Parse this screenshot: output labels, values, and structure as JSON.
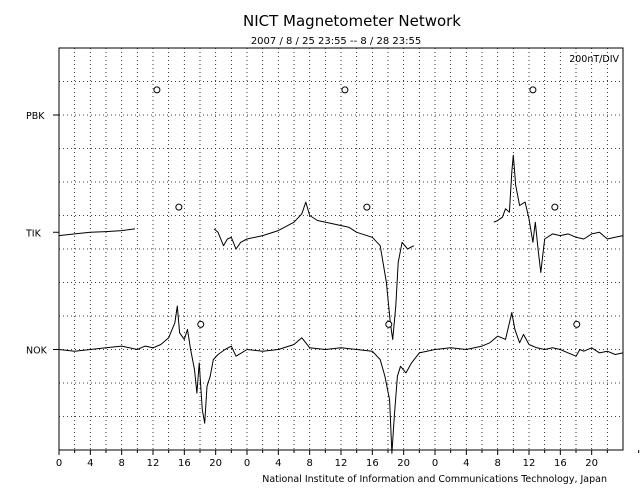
{
  "chart_data": {
    "type": "line",
    "title": "NICT Magnetometer Network",
    "subtitle": "2007 / 8 / 25   23:55 --  8 / 28   23:55",
    "scale_label": "200nT/DIV",
    "credit": "National Institute of Information and Communications Technology, Japan",
    "x_tick_labels": [
      "0",
      "4",
      "8",
      "12",
      "16",
      "20",
      "0",
      "4",
      "8",
      "12",
      "16",
      "20",
      "0",
      "4",
      "8",
      "12",
      "16",
      "20"
    ],
    "x_range_hours": [
      0,
      72
    ],
    "y_range_div": [
      0,
      12
    ],
    "grid": true,
    "stations": [
      {
        "name": "PBK",
        "baseline_div": 10,
        "midnight_markers_h": [
          12.5,
          36.5,
          60.5
        ],
        "data": []
      },
      {
        "name": "TIK",
        "baseline_div": 6.5,
        "midnight_markers_h": [
          15.3,
          39.3,
          63.3
        ],
        "data": [
          [
            [
              0,
              -0.1
            ],
            [
              2,
              -0.05
            ],
            [
              4,
              0.0
            ],
            [
              6,
              0.02
            ],
            [
              8,
              0.05
            ],
            [
              9.7,
              0.1
            ]
          ],
          [
            [
              19.8,
              0.1
            ],
            [
              20.3,
              0.0
            ],
            [
              21,
              -0.4
            ],
            [
              21.5,
              -0.2
            ],
            [
              22,
              -0.15
            ],
            [
              22.6,
              -0.5
            ],
            [
              23.2,
              -0.3
            ],
            [
              24,
              -0.2
            ],
            [
              26,
              -0.1
            ],
            [
              28,
              0.05
            ],
            [
              30,
              0.3
            ],
            [
              31,
              0.55
            ],
            [
              31.5,
              0.9
            ],
            [
              32,
              0.5
            ],
            [
              33,
              0.35
            ],
            [
              35,
              0.25
            ],
            [
              37,
              0.15
            ],
            [
              38,
              0.0
            ],
            [
              40,
              -0.15
            ],
            [
              41,
              -0.4
            ],
            [
              41.8,
              -1.5
            ],
            [
              42.3,
              -2.7
            ],
            [
              42.6,
              -3.2
            ],
            [
              43,
              -2.2
            ],
            [
              43.3,
              -0.9
            ],
            [
              43.8,
              -0.3
            ],
            [
              44.5,
              -0.5
            ],
            [
              45.3,
              -0.4
            ]
          ],
          [
            [
              55.5,
              0.3
            ],
            [
              56,
              0.35
            ],
            [
              56.6,
              0.45
            ],
            [
              57,
              0.7
            ],
            [
              57.5,
              0.6
            ],
            [
              57.8,
              1.8
            ],
            [
              58,
              2.3
            ],
            [
              58.3,
              1.4
            ],
            [
              58.8,
              0.8
            ],
            [
              59.5,
              0.9
            ],
            [
              60,
              0.4
            ],
            [
              60.5,
              -0.3
            ],
            [
              60.8,
              0.3
            ],
            [
              61.2,
              -0.6
            ],
            [
              61.5,
              -1.2
            ],
            [
              61.8,
              -0.6
            ],
            [
              62,
              -0.2
            ],
            [
              63,
              -0.05
            ],
            [
              64,
              -0.1
            ],
            [
              65,
              -0.05
            ],
            [
              66,
              -0.15
            ],
            [
              67,
              -0.2
            ],
            [
              68,
              -0.05
            ],
            [
              69,
              0.0
            ],
            [
              70,
              -0.2
            ],
            [
              71,
              -0.15
            ],
            [
              72,
              -0.1
            ]
          ]
        ]
      },
      {
        "name": "NOK",
        "baseline_div": 3.0,
        "midnight_markers_h": [
          18.1,
          42.1,
          66.1
        ],
        "data": [
          [
            [
              0,
              0.0
            ],
            [
              2,
              -0.05
            ],
            [
              4,
              0.0
            ],
            [
              6,
              0.05
            ],
            [
              8,
              0.1
            ],
            [
              10,
              0.0
            ],
            [
              11,
              0.1
            ],
            [
              12,
              0.05
            ],
            [
              13,
              0.15
            ],
            [
              14,
              0.35
            ],
            [
              14.8,
              0.8
            ],
            [
              15.1,
              1.3
            ],
            [
              15.4,
              0.5
            ],
            [
              16,
              0.3
            ],
            [
              16.4,
              0.6
            ],
            [
              16.8,
              0.0
            ],
            [
              17.3,
              -0.6
            ],
            [
              17.6,
              -1.3
            ],
            [
              17.9,
              -0.4
            ],
            [
              18.3,
              -1.8
            ],
            [
              18.6,
              -2.2
            ],
            [
              18.9,
              -1.1
            ],
            [
              19.3,
              -0.8
            ],
            [
              19.7,
              -0.3
            ],
            [
              20.3,
              -0.15
            ],
            [
              21.2,
              0.0
            ],
            [
              22,
              0.1
            ],
            [
              22.6,
              -0.2
            ],
            [
              23.3,
              -0.1
            ],
            [
              24,
              0.0
            ]
          ],
          [
            [
              24,
              0.0
            ],
            [
              26,
              -0.05
            ],
            [
              28,
              0.0
            ],
            [
              30,
              0.15
            ],
            [
              31,
              0.35
            ],
            [
              31.5,
              0.2
            ],
            [
              32,
              0.05
            ],
            [
              34,
              0.0
            ],
            [
              36,
              0.05
            ],
            [
              38,
              0.0
            ],
            [
              40,
              -0.05
            ],
            [
              41,
              -0.3
            ],
            [
              41.6,
              -0.8
            ],
            [
              42.2,
              -1.5
            ],
            [
              42.5,
              -3.1
            ],
            [
              42.8,
              -2.0
            ],
            [
              43.2,
              -0.8
            ],
            [
              43.6,
              -0.5
            ],
            [
              44.3,
              -0.7
            ],
            [
              45,
              -0.4
            ],
            [
              46,
              -0.1
            ],
            [
              48,
              0.0
            ]
          ],
          [
            [
              48,
              0.0
            ],
            [
              50,
              0.05
            ],
            [
              52,
              0.0
            ],
            [
              54,
              0.1
            ],
            [
              55,
              0.2
            ],
            [
              56,
              0.4
            ],
            [
              57,
              0.3
            ],
            [
              57.8,
              1.1
            ],
            [
              58.2,
              0.6
            ],
            [
              58.8,
              0.2
            ],
            [
              59.3,
              0.45
            ],
            [
              60,
              0.15
            ],
            [
              61,
              0.05
            ],
            [
              62,
              0.0
            ],
            [
              63,
              0.05
            ],
            [
              64,
              0.0
            ],
            [
              65,
              -0.1
            ],
            [
              66,
              -0.2
            ],
            [
              66.5,
              0.0
            ],
            [
              67,
              -0.05
            ],
            [
              68,
              0.05
            ],
            [
              69,
              -0.1
            ],
            [
              70,
              -0.05
            ],
            [
              71,
              -0.15
            ],
            [
              72,
              -0.1
            ]
          ]
        ]
      }
    ]
  }
}
